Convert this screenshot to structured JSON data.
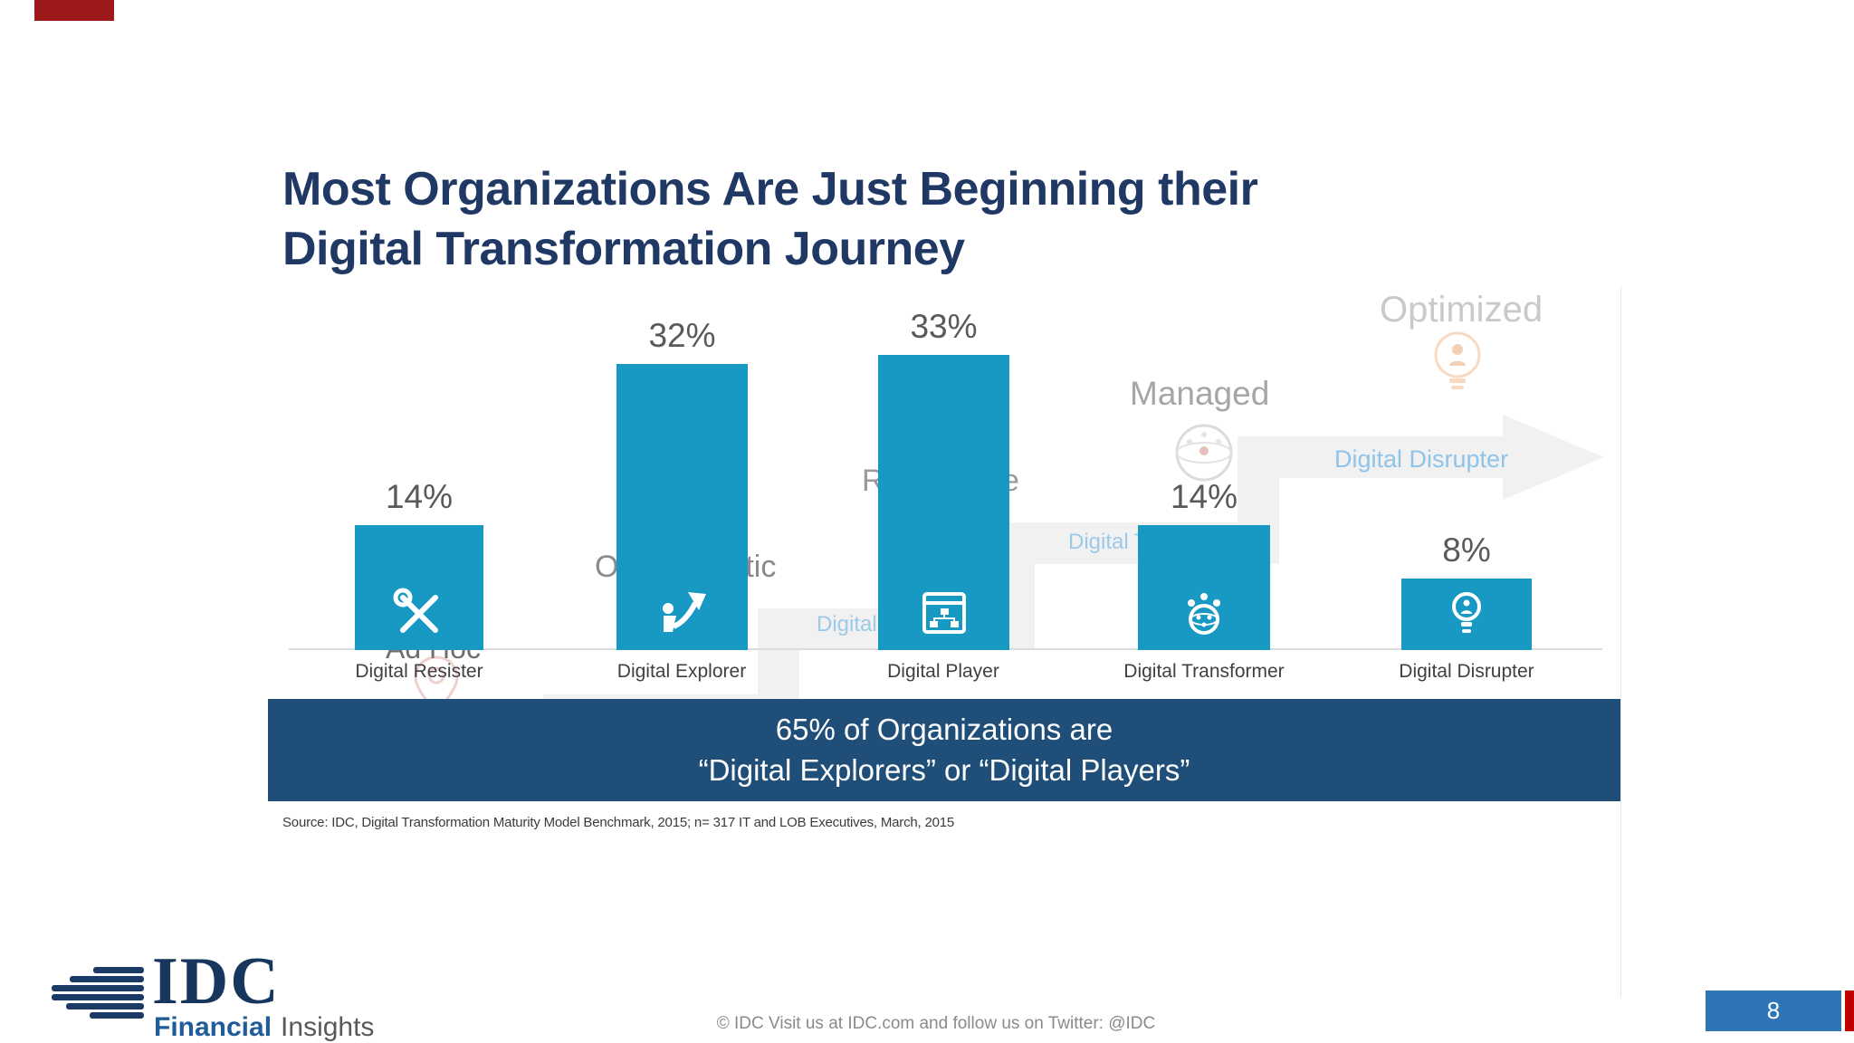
{
  "slide": {
    "title_lines": [
      "Most Organizations Are Just Beginning their",
      "Digital Transformation Journey"
    ],
    "accent_bar_color": "#9E1A1A"
  },
  "chart_data": {
    "type": "bar",
    "title": "Most Organizations Are Just Beginning their Digital Transformation Journey",
    "categories": [
      "Digital Resister",
      "Digital Explorer",
      "Digital Player",
      "Digital Transformer",
      "Digital Disrupter"
    ],
    "values": [
      14,
      32,
      33,
      14,
      8
    ],
    "value_labels": [
      "14%",
      "32%",
      "33%",
      "14%",
      "8%"
    ],
    "unit": "%",
    "xlabel": "",
    "ylabel": "",
    "ylim": [
      0,
      35
    ],
    "grid": false,
    "legend": false,
    "bar_color": "#1799C4",
    "value_label_color": "#595959",
    "maturity_stages_watermark": [
      "Ad Hoc",
      "Opportunistic",
      "Repeatable",
      "Managed",
      "Optimized"
    ],
    "watermark_blue_labels": [
      "Digital Player",
      "Digital Transformer",
      "Digital Disrupter"
    ],
    "bar_icons": [
      "tools-icon",
      "explorer-arrow-icon",
      "window-orgchart-icon",
      "globe-people-icon",
      "lightbulb-person-icon"
    ]
  },
  "banner": {
    "line1": "65% of Organizations are",
    "line2": "“Digital Explorers” or “Digital Players”",
    "bg_color": "#1F4E79"
  },
  "source_note": "Source: IDC,  Digital Transformation Maturity Model Benchmark, 2015; n= 317 IT and LOB Executives, March, 2015",
  "footer": {
    "logo": {
      "idc": "IDC",
      "financial": "Financial",
      "insights": "Insights"
    },
    "copyright": "© IDC   Visit us at IDC.com and follow us on Twitter: @IDC",
    "page_number": "8",
    "page_box_color": "#2E75B6",
    "page_accent_color": "#C00000"
  }
}
